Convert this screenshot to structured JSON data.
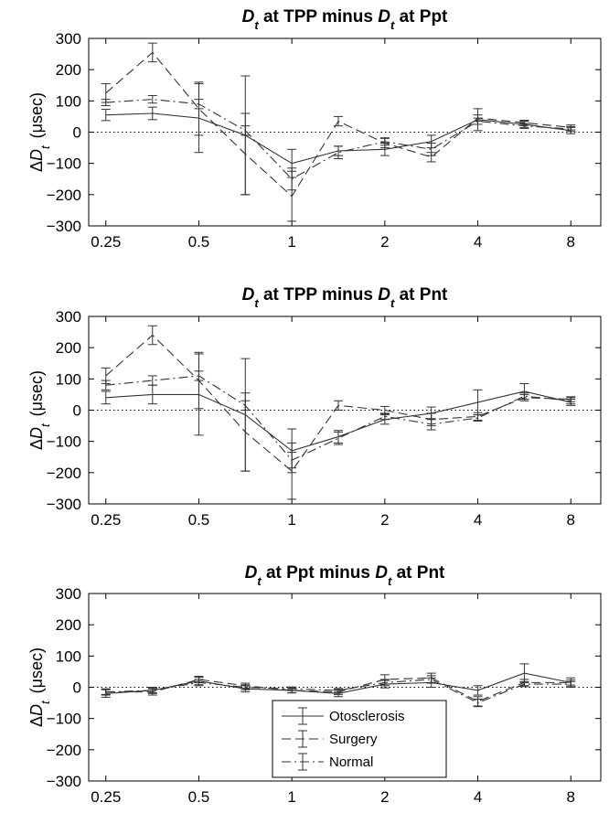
{
  "chart_data": [
    {
      "type": "line",
      "title": {
        "sym": "D",
        "sub": "t",
        "mid": " at TPP minus ",
        "sym2": "D",
        "sub2": "t",
        "end": " at Ppt"
      },
      "ylabel": {
        "prefix": "Δ",
        "sym": "D",
        "sub": "t",
        "unit": "(μsec)"
      },
      "xlim": [
        0.22,
        10
      ],
      "ylim": [
        -300,
        300
      ],
      "x_scale": "log",
      "xticks": [
        0.25,
        0.5,
        1,
        2,
        4,
        8
      ],
      "xtick_labels": [
        "0.25",
        "0.5",
        "1",
        "2",
        "4",
        "8"
      ],
      "yticks": [
        300,
        200,
        100,
        0,
        -100,
        -200,
        -300
      ],
      "ytick_labels": [
        "300",
        "200",
        "100",
        "0",
        "−100",
        "−200",
        "−300"
      ],
      "x": [
        0.25,
        0.354,
        0.5,
        0.707,
        1,
        1.414,
        2,
        2.828,
        4,
        5.657,
        8
      ],
      "series": [
        {
          "name": "Otosclerosis",
          "dash": "solid",
          "color": "#333333",
          "values": [
            55,
            60,
            45,
            -10,
            -100,
            -60,
            -55,
            -30,
            40,
            25,
            5
          ],
          "errors": [
            18,
            20,
            110,
            190,
            45,
            15,
            20,
            20,
            35,
            10,
            10
          ]
        },
        {
          "name": "Surgery",
          "dash": "dashed",
          "color": "#333333",
          "values": [
            125,
            255,
            75,
            -70,
            -205,
            35,
            -35,
            -80,
            45,
            30,
            15
          ],
          "errors": [
            30,
            30,
            85,
            130,
            80,
            15,
            15,
            15,
            10,
            8,
            8
          ]
        },
        {
          "name": "Normal",
          "dash": "dashdot",
          "color": "#333333",
          "values": [
            95,
            105,
            90,
            5,
            -150,
            -65,
            -30,
            -55,
            35,
            20,
            10
          ],
          "errors": [
            10,
            12,
            15,
            15,
            35,
            20,
            12,
            20,
            10,
            8,
            8
          ]
        }
      ]
    },
    {
      "type": "line",
      "title": {
        "sym": "D",
        "sub": "t",
        "mid": " at TPP minus ",
        "sym2": "D",
        "sub2": "t",
        "end": " at Pnt"
      },
      "ylabel": {
        "prefix": "Δ",
        "sym": "D",
        "sub": "t",
        "unit": "(μsec)"
      },
      "xlim": [
        0.22,
        10
      ],
      "ylim": [
        -300,
        300
      ],
      "x_scale": "log",
      "xticks": [
        0.25,
        0.5,
        1,
        2,
        4,
        8
      ],
      "xtick_labels": [
        "0.25",
        "0.5",
        "1",
        "2",
        "4",
        "8"
      ],
      "yticks": [
        300,
        200,
        100,
        0,
        -100,
        -200,
        -300
      ],
      "ytick_labels": [
        "300",
        "200",
        "100",
        "0",
        "−100",
        "−200",
        "−300"
      ],
      "x": [
        0.25,
        0.354,
        0.5,
        0.707,
        1,
        1.414,
        2,
        2.828,
        4,
        5.657,
        8
      ],
      "series": [
        {
          "name": "Otosclerosis",
          "dash": "solid",
          "color": "#333333",
          "values": [
            40,
            50,
            50,
            -15,
            -130,
            -85,
            -30,
            -10,
            25,
            60,
            25
          ],
          "errors": [
            20,
            30,
            130,
            180,
            70,
            20,
            15,
            20,
            40,
            25,
            10
          ]
        },
        {
          "name": "Surgery",
          "dash": "dashed",
          "color": "#333333",
          "values": [
            110,
            240,
            95,
            -70,
            -195,
            15,
            0,
            -30,
            -20,
            40,
            35
          ],
          "errors": [
            25,
            30,
            90,
            125,
            90,
            15,
            12,
            20,
            12,
            10,
            8
          ]
        },
        {
          "name": "Normal",
          "dash": "dashdot",
          "color": "#333333",
          "values": [
            80,
            95,
            110,
            15,
            -160,
            -90,
            -20,
            -45,
            -25,
            45,
            30
          ],
          "errors": [
            15,
            15,
            15,
            15,
            25,
            20,
            10,
            18,
            10,
            10,
            10
          ]
        }
      ]
    },
    {
      "type": "line",
      "title": {
        "sym": "D",
        "sub": "t",
        "mid": " at Ppt minus ",
        "sym2": "D",
        "sub2": "t",
        "end": " at Pnt"
      },
      "ylabel": {
        "prefix": "Δ",
        "sym": "D",
        "sub": "t",
        "unit": "(μsec)"
      },
      "xlim": [
        0.22,
        10
      ],
      "ylim": [
        -300,
        300
      ],
      "x_scale": "log",
      "xticks": [
        0.25,
        0.5,
        1,
        2,
        4,
        8
      ],
      "xtick_labels": [
        "0.25",
        "0.5",
        "1",
        "2",
        "4",
        "8"
      ],
      "yticks": [
        300,
        200,
        100,
        0,
        -100,
        -200,
        -300
      ],
      "ytick_labels": [
        "300",
        "200",
        "100",
        "0",
        "−100",
        "−200",
        "−300"
      ],
      "x": [
        0.25,
        0.354,
        0.5,
        0.707,
        1,
        1.414,
        2,
        2.828,
        4,
        5.657,
        8
      ],
      "series": [
        {
          "name": "Otosclerosis",
          "dash": "solid",
          "color": "#333333",
          "values": [
            -20,
            -10,
            20,
            -5,
            -10,
            -20,
            10,
            15,
            -10,
            45,
            15
          ],
          "errors": [
            12,
            10,
            12,
            10,
            8,
            10,
            12,
            15,
            15,
            30,
            15
          ]
        },
        {
          "name": "Surgery",
          "dash": "dashed",
          "color": "#333333",
          "values": [
            -15,
            -15,
            25,
            5,
            -10,
            -15,
            25,
            30,
            -45,
            15,
            15
          ],
          "errors": [
            10,
            10,
            10,
            8,
            8,
            8,
            15,
            15,
            15,
            10,
            8
          ]
        },
        {
          "name": "Normal",
          "dash": "dashdot",
          "color": "#333333",
          "values": [
            -15,
            -10,
            15,
            0,
            -5,
            -10,
            15,
            25,
            -50,
            10,
            10
          ],
          "errors": [
            8,
            8,
            10,
            8,
            6,
            6,
            10,
            12,
            12,
            8,
            8
          ]
        }
      ],
      "legend": {
        "placement": "bottom-center",
        "entries": [
          "Otosclerosis",
          "Surgery",
          "Normal"
        ]
      }
    }
  ]
}
